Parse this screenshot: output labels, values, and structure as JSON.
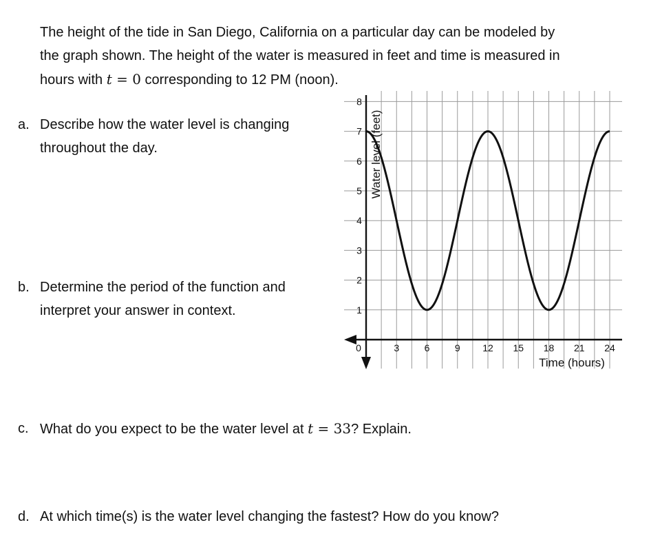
{
  "intro": {
    "line1": "The height of the tide in San Diego, California on a particular day can be modeled by",
    "line2": "the graph shown. The height of the water is measured in feet and time is measured in",
    "line3_pre": "hours with ",
    "line3_var": "t",
    "line3_eq": " = 0",
    "line3_post": " corresponding to 12 PM (noon)."
  },
  "questions": {
    "a": {
      "letter": "a.",
      "line1": "Describe how the water level is changing",
      "line2": "throughout the day."
    },
    "b": {
      "letter": "b.",
      "line1": "Determine the period of the function and",
      "line2": "interpret your answer in context."
    },
    "c": {
      "letter": "c.",
      "pre": "What do you expect to be the water level at ",
      "var": "t",
      "eq": " = 33",
      "post": "? Explain."
    },
    "d": {
      "letter": "d.",
      "text": "At which time(s) is the water level changing the fastest? How do you know?"
    }
  },
  "chart_data": {
    "type": "line",
    "xlabel": "Time (hours)",
    "ylabel": "Water level (feet)",
    "xlim": [
      0,
      24
    ],
    "ylim": [
      0,
      8
    ],
    "x_ticks": [
      "0",
      "3",
      "6",
      "9",
      "12",
      "15",
      "18",
      "21",
      "24"
    ],
    "y_ticks": [
      "1",
      "2",
      "3",
      "4",
      "5",
      "6",
      "7",
      "8"
    ],
    "grid": true,
    "series": [
      {
        "points": [
          [
            0,
            7
          ],
          [
            3,
            4
          ],
          [
            6,
            1
          ],
          [
            9,
            4
          ],
          [
            12,
            7
          ],
          [
            15,
            4
          ],
          [
            18,
            1
          ],
          [
            21,
            4
          ],
          [
            24,
            7
          ]
        ]
      }
    ]
  }
}
